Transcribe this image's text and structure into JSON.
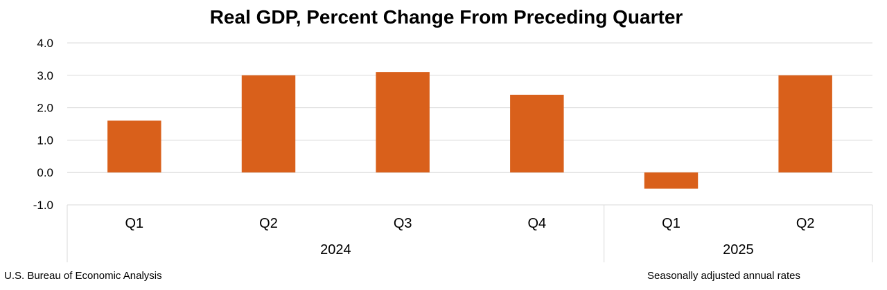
{
  "chart_data": {
    "type": "bar",
    "title": "Real GDP, Percent Change From Preceding Quarter",
    "categories": [
      "Q1",
      "Q2",
      "Q3",
      "Q4",
      "Q1",
      "Q2"
    ],
    "groups": [
      {
        "label": "2024",
        "categories": [
          "Q1",
          "Q2",
          "Q3",
          "Q4"
        ]
      },
      {
        "label": "2025",
        "categories": [
          "Q1",
          "Q2"
        ]
      }
    ],
    "values": [
      1.6,
      3.0,
      3.1,
      2.4,
      -0.5,
      3.0
    ],
    "ylim": [
      -1.0,
      4.0
    ],
    "yticks": [
      "-1.0",
      "0.0",
      "1.0",
      "2.0",
      "3.0",
      "4.0"
    ],
    "xlabel": "",
    "ylabel": "",
    "grid": true,
    "legend": "none",
    "bar_color": "#D9601B",
    "grid_color": "#D9D9D9"
  },
  "footer": {
    "source": "U.S. Bureau of Economic Analysis",
    "note": "Seasonally adjusted annual rates"
  }
}
